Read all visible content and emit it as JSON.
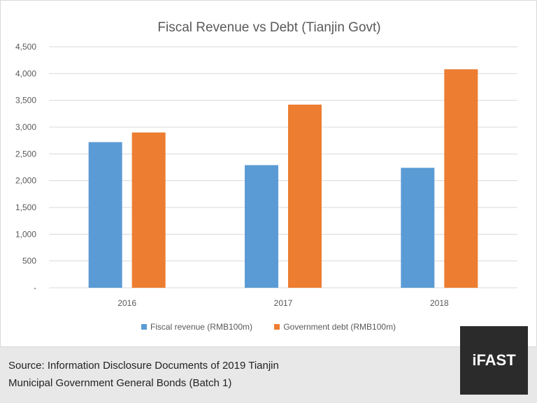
{
  "chart_data": {
    "type": "bar",
    "title": "Fiscal Revenue vs Debt (Tianjin Govt)",
    "categories": [
      "2016",
      "2017",
      "2018"
    ],
    "series": [
      {
        "name": "Fiscal revenue (RMB100m)",
        "color": "#5b9bd5",
        "values": [
          2720,
          2290,
          2240
        ]
      },
      {
        "name": "Government debt (RMB100m)",
        "color": "#ed7d31",
        "values": [
          2900,
          3420,
          4080
        ]
      }
    ],
    "ylim": [
      0,
      4500
    ],
    "yticks": [
      "-",
      "500",
      "1,000",
      "1,500",
      "2,000",
      "2,500",
      "3,000",
      "3,500",
      "4,000",
      "4,500"
    ],
    "grid": true,
    "legend": "bottom",
    "xlabel": "",
    "ylabel": ""
  },
  "source": {
    "line1": "Source: Information Disclosure Documents of 2019 Tianjin",
    "line2": "Municipal Government General Bonds (Batch 1)"
  },
  "logo": "iFAST"
}
